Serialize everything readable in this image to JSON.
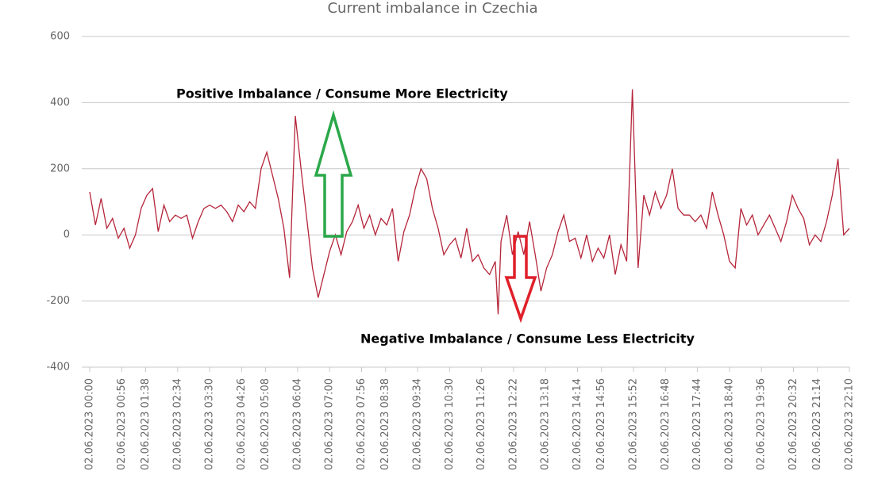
{
  "chart_data": {
    "type": "line",
    "title": "Current imbalance in Czechia",
    "annotations": [
      "Positive Imbalance / Consume More Electricity",
      "Negative Imbalance / Consume Less Electricity"
    ],
    "x": [
      "02.06.2023 00:00",
      "02.06.2023 00:10",
      "02.06.2023 00:20",
      "02.06.2023 00:30",
      "02.06.2023 00:40",
      "02.06.2023 00:50",
      "02.06.2023 01:00",
      "02.06.2023 01:10",
      "02.06.2023 01:20",
      "02.06.2023 01:30",
      "02.06.2023 01:40",
      "02.06.2023 01:50",
      "02.06.2023 02:00",
      "02.06.2023 02:10",
      "02.06.2023 02:20",
      "02.06.2023 02:30",
      "02.06.2023 02:40",
      "02.06.2023 02:50",
      "02.06.2023 03:00",
      "02.06.2023 03:10",
      "02.06.2023 03:20",
      "02.06.2023 03:30",
      "02.06.2023 03:40",
      "02.06.2023 03:50",
      "02.06.2023 04:00",
      "02.06.2023 04:10",
      "02.06.2023 04:20",
      "02.06.2023 04:30",
      "02.06.2023 04:40",
      "02.06.2023 04:50",
      "02.06.2023 05:00",
      "02.06.2023 05:10",
      "02.06.2023 05:20",
      "02.06.2023 05:30",
      "02.06.2023 05:40",
      "02.06.2023 05:50",
      "02.06.2023 06:00",
      "02.06.2023 06:10",
      "02.06.2023 06:20",
      "02.06.2023 06:30",
      "02.06.2023 06:40",
      "02.06.2023 06:50",
      "02.06.2023 07:00",
      "02.06.2023 07:10",
      "02.06.2023 07:20",
      "02.06.2023 07:30",
      "02.06.2023 07:40",
      "02.06.2023 07:50",
      "02.06.2023 08:00",
      "02.06.2023 08:10",
      "02.06.2023 08:20",
      "02.06.2023 08:30",
      "02.06.2023 08:40",
      "02.06.2023 08:50",
      "02.06.2023 09:00",
      "02.06.2023 09:10",
      "02.06.2023 09:20",
      "02.06.2023 09:30",
      "02.06.2023 09:40",
      "02.06.2023 09:50",
      "02.06.2023 10:00",
      "02.06.2023 10:10",
      "02.06.2023 10:20",
      "02.06.2023 10:30",
      "02.06.2023 10:40",
      "02.06.2023 10:50",
      "02.06.2023 11:00",
      "02.06.2023 11:10",
      "02.06.2023 11:20",
      "02.06.2023 11:30",
      "02.06.2023 11:40",
      "02.06.2023 11:50",
      "02.06.2023 11:55",
      "02.06.2023 12:00",
      "02.06.2023 12:10",
      "02.06.2023 12:20",
      "02.06.2023 12:30",
      "02.06.2023 12:40",
      "02.06.2023 12:50",
      "02.06.2023 13:00",
      "02.06.2023 13:10",
      "02.06.2023 13:20",
      "02.06.2023 13:30",
      "02.06.2023 13:40",
      "02.06.2023 13:50",
      "02.06.2023 14:00",
      "02.06.2023 14:10",
      "02.06.2023 14:20",
      "02.06.2023 14:30",
      "02.06.2023 14:40",
      "02.06.2023 14:50",
      "02.06.2023 15:00",
      "02.06.2023 15:10",
      "02.06.2023 15:20",
      "02.06.2023 15:30",
      "02.06.2023 15:40",
      "02.06.2023 15:50",
      "02.06.2023 16:00",
      "02.06.2023 16:10",
      "02.06.2023 16:20",
      "02.06.2023 16:30",
      "02.06.2023 16:40",
      "02.06.2023 16:50",
      "02.06.2023 17:00",
      "02.06.2023 17:10",
      "02.06.2023 17:20",
      "02.06.2023 17:30",
      "02.06.2023 17:40",
      "02.06.2023 17:50",
      "02.06.2023 18:00",
      "02.06.2023 18:10",
      "02.06.2023 18:20",
      "02.06.2023 18:30",
      "02.06.2023 18:40",
      "02.06.2023 18:50",
      "02.06.2023 19:00",
      "02.06.2023 19:10",
      "02.06.2023 19:20",
      "02.06.2023 19:30",
      "02.06.2023 19:40",
      "02.06.2023 19:50",
      "02.06.2023 20:00",
      "02.06.2023 20:10",
      "02.06.2023 20:20",
      "02.06.2023 20:30",
      "02.06.2023 20:40",
      "02.06.2023 20:50",
      "02.06.2023 21:00",
      "02.06.2023 21:10",
      "02.06.2023 21:20",
      "02.06.2023 21:30",
      "02.06.2023 21:40",
      "02.06.2023 21:50",
      "02.06.2023 22:00",
      "02.06.2023 22:10"
    ],
    "series": [
      {
        "color": "#b5253a",
        "values": [
          130,
          30,
          110,
          20,
          50,
          -10,
          20,
          -40,
          0,
          80,
          120,
          140,
          10,
          90,
          40,
          60,
          50,
          60,
          -10,
          40,
          80,
          90,
          80,
          90,
          70,
          40,
          90,
          70,
          100,
          80,
          200,
          250,
          180,
          110,
          20,
          -130,
          360,
          200,
          50,
          -100,
          -190,
          -120,
          -50,
          0,
          -60,
          10,
          40,
          90,
          20,
          60,
          0,
          50,
          30,
          80,
          -80,
          10,
          60,
          140,
          200,
          170,
          80,
          20,
          -60,
          -30,
          -10,
          -70,
          20,
          -80,
          -60,
          -100,
          -120,
          -80,
          -240,
          -20,
          60,
          -60,
          10,
          -60,
          40,
          -60,
          -170,
          -100,
          -60,
          10,
          60,
          -20,
          -10,
          -70,
          0,
          -80,
          -40,
          -70,
          0,
          -120,
          -30,
          -80,
          440,
          -100,
          120,
          60,
          130,
          80,
          120,
          200,
          80,
          60,
          60,
          40,
          60,
          20,
          130,
          60,
          0,
          -80,
          -100,
          80,
          30,
          60,
          0,
          30,
          60,
          20,
          -20,
          40,
          120,
          80,
          50,
          -30,
          0,
          -20,
          40,
          120,
          230,
          0,
          20
        ]
      }
    ],
    "xlim": [
      "02.06.2023 00:00",
      "02.06.2023 22:10"
    ],
    "xticks": [
      "02.06.2023 00:00",
      "02.06.2023 00:56",
      "02.06.2023 01:38",
      "02.06.2023 02:34",
      "02.06.2023 03:30",
      "02.06.2023 04:26",
      "02.06.2023 05:08",
      "02.06.2023 06:04",
      "02.06.2023 07:00",
      "02.06.2023 07:56",
      "02.06.2023 08:38",
      "02.06.2023 09:34",
      "02.06.2023 10:30",
      "02.06.2023 11:26",
      "02.06.2023 12:22",
      "02.06.2023 13:18",
      "02.06.2023 14:14",
      "02.06.2023 14:56",
      "02.06.2023 15:52",
      "02.06.2023 16:48",
      "02.06.2023 17:44",
      "02.06.2023 18:40",
      "02.06.2023 19:36",
      "02.06.2023 20:32",
      "02.06.2023 21:14",
      "02.06.2023 22:10"
    ],
    "ylim": [
      -400,
      600
    ],
    "yticks": [
      -400,
      -200,
      0,
      200,
      400,
      600
    ],
    "grid": true
  }
}
